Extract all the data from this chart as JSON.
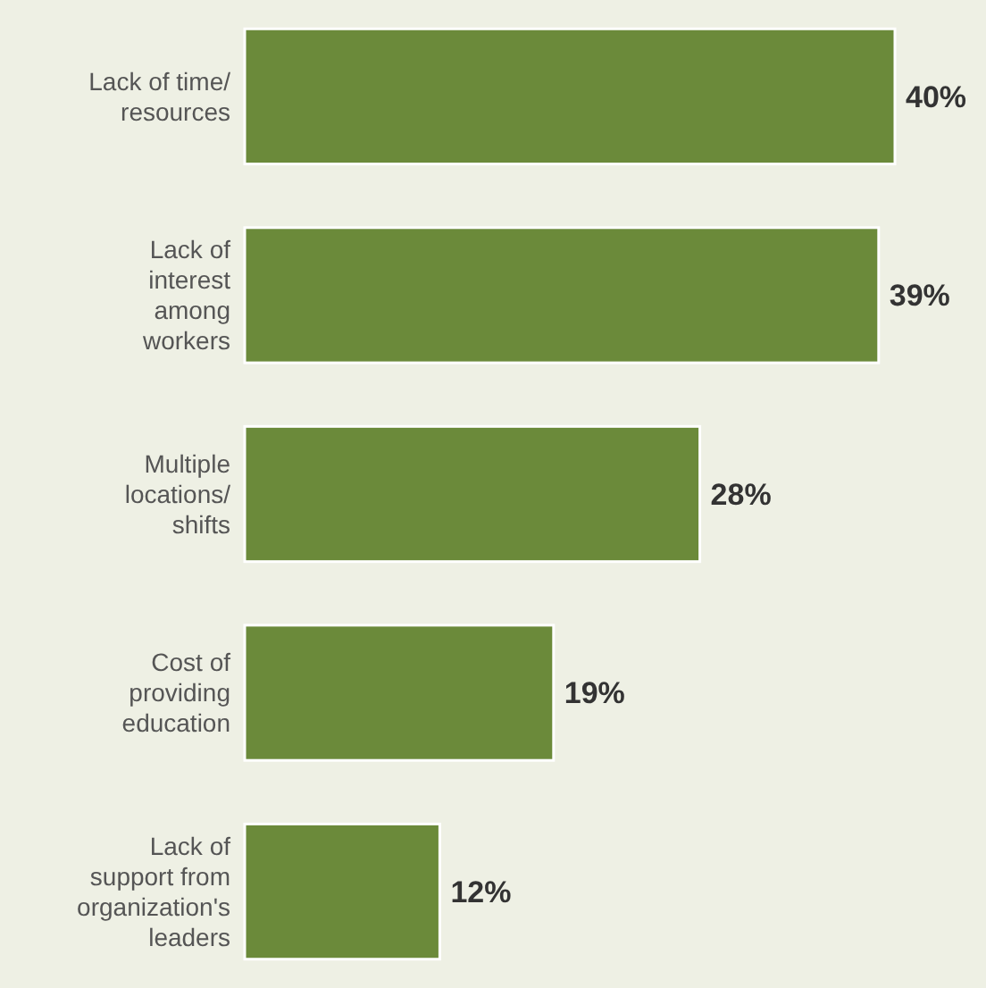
{
  "chart_data": {
    "type": "bar",
    "orientation": "horizontal",
    "categories": [
      "Lack of time/\nresources",
      "Lack of\ninterest\namong\nworkers",
      "Multiple\nlocations/\nshifts",
      "Cost of\nproviding\neducation",
      "Lack of\nsupport from\norganization's\nleaders"
    ],
    "values": [
      40,
      39,
      28,
      19,
      12
    ],
    "value_labels": [
      "40%",
      "39%",
      "28%",
      "19%",
      "12%"
    ],
    "color": "#6b8a3a"
  }
}
